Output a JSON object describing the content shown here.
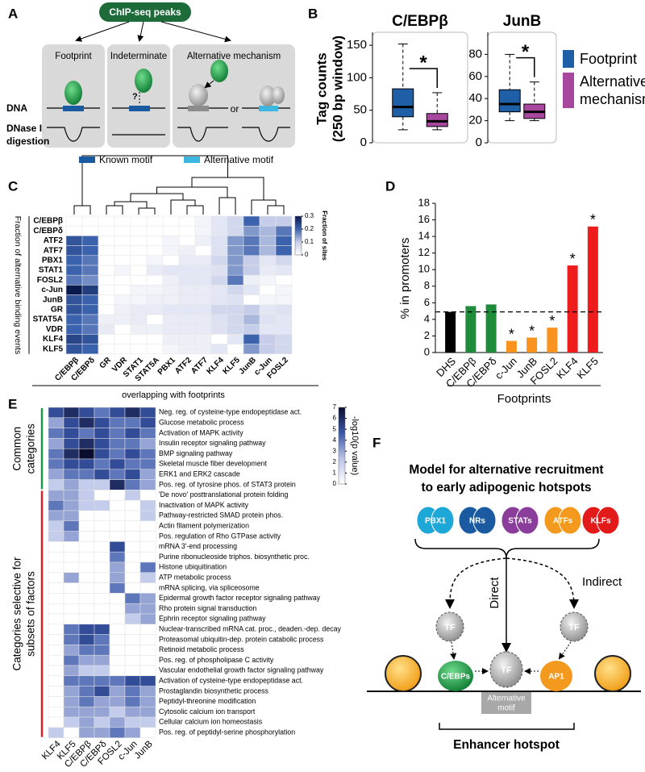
{
  "panel_labels": [
    "A",
    "B",
    "C",
    "D",
    "E",
    "F"
  ],
  "diagram_a": {
    "source": "ChIP-seq peaks",
    "classes": [
      "Footprint",
      "Indeterminate",
      "Alternative mechanism"
    ],
    "dna_label": "DNA",
    "digestion_label_lines": [
      "DNase I",
      "digestion"
    ],
    "unknown_mark": "?",
    "or_label": "or",
    "legend": [
      {
        "name": "Known motif",
        "color": "#1a5aa0"
      },
      {
        "name": "Alternative motif",
        "color": "#3cb8e0"
      }
    ]
  },
  "chart_data": [
    {
      "type": "box",
      "ylabel_lines": [
        "Tag counts",
        "(250 bp window)"
      ],
      "categories": [
        "C/EBPβ",
        "JunB"
      ],
      "ylims": [
        [
          0,
          170
        ],
        [
          0,
          100
        ]
      ],
      "yticks": [
        [
          0,
          50,
          100,
          150
        ],
        [
          0,
          20,
          40,
          60,
          80
        ]
      ],
      "significance": [
        "*",
        "*"
      ],
      "series": [
        {
          "name": "Footprint",
          "color": "#1f5fa8",
          "values": [
            {
              "low": 20,
              "q1": 40,
              "median": 55,
              "q3": 83,
              "high": 152
            },
            {
              "low": 20,
              "q1": 28,
              "median": 35,
              "q3": 48,
              "high": 80
            }
          ]
        },
        {
          "name": "Alternative mechanism",
          "color": "#a8479e",
          "values": [
            {
              "low": 20,
              "q1": 25,
              "median": 33,
              "q3": 45,
              "high": 77
            },
            {
              "low": 20,
              "q1": 22,
              "median": 28,
              "q3": 35,
              "high": 55
            }
          ]
        }
      ]
    },
    {
      "type": "heatmap",
      "ylabel": "Fraction of alternative binding events",
      "xlabel": "overlapping with footprints",
      "rows": [
        "C/EBPβ",
        "C/EBPδ",
        "ATF2",
        "ATF7",
        "PBX1",
        "STAT1",
        "FOSL2",
        "c-Jun",
        "JunB",
        "GR",
        "STAT5A",
        "VDR",
        "KLF4",
        "KLF5"
      ],
      "columns": [
        "C/EBPβ",
        "C/EBPδ",
        "GR",
        "VDR",
        "STAT1",
        "STAT5A",
        "PBX1",
        "ATF2",
        "ATF7",
        "KLF4",
        "KLF5",
        "JunB",
        "c-Jun",
        "FOSL2"
      ],
      "values": [
        [
          0,
          0,
          0,
          0,
          0,
          0,
          0,
          0,
          0.02,
          0.05,
          0.08,
          0.2,
          0.1,
          0.1
        ],
        [
          0,
          0,
          0,
          0,
          0,
          0,
          0,
          0,
          0.02,
          0.05,
          0.08,
          0.15,
          0.12,
          0.18
        ],
        [
          0.22,
          0.2,
          0,
          0,
          0,
          0,
          0.02,
          0,
          0.03,
          0.06,
          0.15,
          0.18,
          0.12,
          0.2
        ],
        [
          0.22,
          0.2,
          0,
          0,
          0,
          0,
          0.02,
          0.03,
          0,
          0.06,
          0.15,
          0.18,
          0.12,
          0.2
        ],
        [
          0.2,
          0.18,
          0,
          0,
          0,
          0.02,
          0,
          0.04,
          0.04,
          0.08,
          0.15,
          0.1,
          0.05,
          0.08
        ],
        [
          0.2,
          0.18,
          0,
          0.02,
          0,
          0.04,
          0.05,
          0.05,
          0.05,
          0.06,
          0.15,
          0.1,
          0.04,
          0.05
        ],
        [
          0.18,
          0.16,
          0,
          0,
          0,
          0,
          0.03,
          0.05,
          0.05,
          0.08,
          0.18,
          0.03,
          0.02,
          0
        ],
        [
          0.3,
          0.25,
          0,
          0,
          0.02,
          0.02,
          0.03,
          0.04,
          0.04,
          0.05,
          0.08,
          0.05,
          0,
          0.02
        ],
        [
          0.22,
          0.2,
          0,
          0.02,
          0.02,
          0.03,
          0.03,
          0.04,
          0.04,
          0.05,
          0.06,
          0,
          0.02,
          0.02
        ],
        [
          0.22,
          0.2,
          0,
          0.03,
          0.04,
          0.04,
          0.05,
          0.05,
          0.05,
          0.08,
          0.08,
          0.1,
          0.05,
          0.06
        ],
        [
          0.2,
          0.18,
          0.03,
          0.03,
          0.04,
          0,
          0.04,
          0.04,
          0.04,
          0.06,
          0.08,
          0.12,
          0.06,
          0.05
        ],
        [
          0.2,
          0.18,
          0.04,
          0,
          0.03,
          0.03,
          0.04,
          0.04,
          0.04,
          0.06,
          0.08,
          0.1,
          0.05,
          0.05
        ],
        [
          0.24,
          0.22,
          0,
          0,
          0,
          0,
          0.03,
          0.03,
          0.03,
          0,
          0.05,
          0.2,
          0.1,
          0.08
        ],
        [
          0.22,
          0.2,
          0,
          0,
          0,
          0,
          0.02,
          0.03,
          0.03,
          0.05,
          0,
          0.15,
          0.1,
          0.08
        ]
      ],
      "colormap": [
        "#ffffff",
        "#c6cde9",
        "#3b62ad",
        "#0b1a4d"
      ],
      "colorbar": {
        "label": "Fraction of sites",
        "lim": [
          0,
          0.3
        ],
        "ticks": [
          0,
          0.1,
          0.2,
          0.3
        ]
      }
    },
    {
      "type": "bar",
      "ylabel": "% in promoters",
      "xlabel": "Footprints",
      "categories": [
        "DHS",
        "C/EBPβ",
        "C/EBPδ",
        "c-Jun",
        "JunB",
        "FOSL2",
        "KLF4",
        "KLF5"
      ],
      "values": [
        4.9,
        5.6,
        5.8,
        1.4,
        1.8,
        3.0,
        10.5,
        15.2
      ],
      "colors": [
        "#000000",
        "#1e8c3a",
        "#1e8c3a",
        "#f7931e",
        "#f7931e",
        "#f7931e",
        "#ee1c1c",
        "#ee1c1c"
      ],
      "significance": [
        null,
        null,
        null,
        "*",
        "*",
        "*",
        "*",
        "*"
      ],
      "reference_line": 4.9,
      "ylim": [
        0,
        18
      ],
      "yticks": [
        0,
        2,
        4,
        6,
        8,
        10,
        12,
        14,
        16,
        18
      ]
    },
    {
      "type": "heatmap",
      "columns": [
        "KLF4",
        "KLF5",
        "C/EBPβ",
        "C/EBPδ",
        "FOSL2",
        "c-Jun",
        "JunB"
      ],
      "groups": [
        {
          "name_lines": [
            "Common",
            "categories"
          ],
          "color": "#1a9a4a",
          "rows": [
            "Neg. reg. of cysteine-type endopeptidase act.",
            "Glucose metabolic process",
            "Activation of MAPK activity",
            "Insulin receptor signaling pathway",
            "BMP signaling pathway",
            "Skeletal muscle fiber development",
            "ERK1 and ERK2 cascade",
            "Pos. reg. of tyrosine phos. of STAT3 protein"
          ],
          "values": [
            [
              5,
              6,
              5,
              4,
              5,
              6,
              5
            ],
            [
              3,
              5,
              6,
              5,
              4,
              4,
              5
            ],
            [
              4,
              5,
              4,
              5,
              4,
              5,
              4
            ],
            [
              3,
              5,
              6,
              5,
              4,
              4,
              3
            ],
            [
              4,
              6,
              7,
              5,
              4,
              5,
              4
            ],
            [
              4,
              5,
              5,
              4,
              5,
              4,
              4
            ],
            [
              3,
              4,
              4,
              5,
              4,
              5,
              3
            ],
            [
              2,
              3,
              2,
              2,
              6,
              4,
              3
            ]
          ]
        },
        {
          "name_lines": [
            "Categories selective for",
            "subsets of factors"
          ],
          "color": "#e02020",
          "rows": [
            "'De novo' posttranslational protein folding",
            "Inactivation of MAPK activity",
            "Pathway-restricted SMAD protein phos.",
            "Actin filament polymerization",
            "Pos. regulation of Rho GTPase activity",
            "mRNA 3'-end processing",
            "Purine ribonucleoside triphos. biosynthetic proc.",
            "Histone ubiquitination",
            "ATP metabolic process",
            "mRNA splicing, via spliceosome",
            "Epidermal growth factor receptor signaling pathway",
            "Rho protein signal transduction",
            "Ephrin receptor signaling pathway",
            "Nuclear-transcribed mRNA cat. proc., deaden.-dep. decay",
            "Proteasomal ubiquitin-dep. protein catabolic process",
            "Retinoid metabolic process",
            "Pos. reg. of phospholipase C activity",
            "Vascular endothelial growth factor signaling pathway",
            "Activation of cysteine-type endopeptidase act.",
            "Prostaglandin biosynthetic process",
            "Peptidyl-threonine modification",
            "Cytosolic calcium ion transport",
            "Cellular calcium ion homeostasis",
            "Pos. reg. of peptidyl-serine phosphorylation"
          ],
          "values": [
            [
              3,
              3,
              2,
              0,
              0,
              2,
              0
            ],
            [
              4,
              3,
              2,
              2,
              0,
              0,
              2
            ],
            [
              3,
              3,
              0,
              0,
              0,
              0,
              2
            ],
            [
              2,
              4,
              0,
              0,
              0,
              0,
              0
            ],
            [
              2,
              3,
              0,
              0,
              0,
              0,
              0
            ],
            [
              0,
              0,
              0,
              0,
              5,
              0,
              0
            ],
            [
              0,
              0,
              0,
              0,
              4,
              0,
              0
            ],
            [
              0,
              0,
              0,
              0,
              3,
              0,
              4
            ],
            [
              0,
              3,
              0,
              0,
              3,
              0,
              2
            ],
            [
              0,
              0,
              0,
              0,
              4,
              0,
              0
            ],
            [
              0,
              0,
              0,
              0,
              0,
              4,
              3
            ],
            [
              0,
              0,
              0,
              0,
              0,
              3,
              3
            ],
            [
              0,
              0,
              0,
              0,
              0,
              2,
              3
            ],
            [
              0,
              4,
              5,
              5,
              0,
              0,
              0
            ],
            [
              0,
              4,
              5,
              4,
              0,
              0,
              0
            ],
            [
              0,
              3,
              4,
              4,
              0,
              0,
              0
            ],
            [
              0,
              4,
              3,
              3,
              0,
              0,
              0
            ],
            [
              0,
              3,
              2,
              2,
              0,
              0,
              0
            ],
            [
              0,
              4,
              4,
              4,
              4,
              5,
              5
            ],
            [
              0,
              3,
              4,
              5,
              3,
              4,
              3
            ],
            [
              0,
              3,
              4,
              3,
              3,
              4,
              3
            ],
            [
              0,
              3,
              3,
              3,
              2,
              3,
              3
            ],
            [
              0,
              2,
              3,
              2,
              3,
              2,
              2
            ],
            [
              2,
              0,
              3,
              3,
              4,
              3,
              0
            ]
          ]
        }
      ],
      "colormap": [
        "#ffffff",
        "#b9c3e6",
        "#3a57a8",
        "#0a0d2e"
      ],
      "colorbar": {
        "label": "-log10(p value)",
        "lim": [
          0,
          7
        ],
        "ticks": [
          0,
          1,
          2,
          3,
          4,
          5,
          6,
          7
        ]
      }
    }
  ],
  "diagram_f": {
    "title_lines": [
      "Model for alternative recruitment",
      "to early adipogenic hotspots"
    ],
    "factors": [
      {
        "label": "PBX1",
        "color": "#1ea8d8"
      },
      {
        "label": "NRs",
        "color": "#1a5aa0"
      },
      {
        "label": "STATs",
        "color": "#8a3d9a"
      },
      {
        "label": "ATFs",
        "color": "#f39a1e"
      },
      {
        "label": "KLFs",
        "color": "#e21a1a"
      }
    ],
    "direct": "Direct",
    "indirect": "Indirect",
    "bridging": [
      "TF",
      "TF"
    ],
    "hotspot": {
      "left": "C/EBPs",
      "center": "TF",
      "right": "AP1",
      "motif_lines": [
        "Alternative",
        "motif"
      ]
    },
    "caption": "Enhancer hotspot"
  }
}
